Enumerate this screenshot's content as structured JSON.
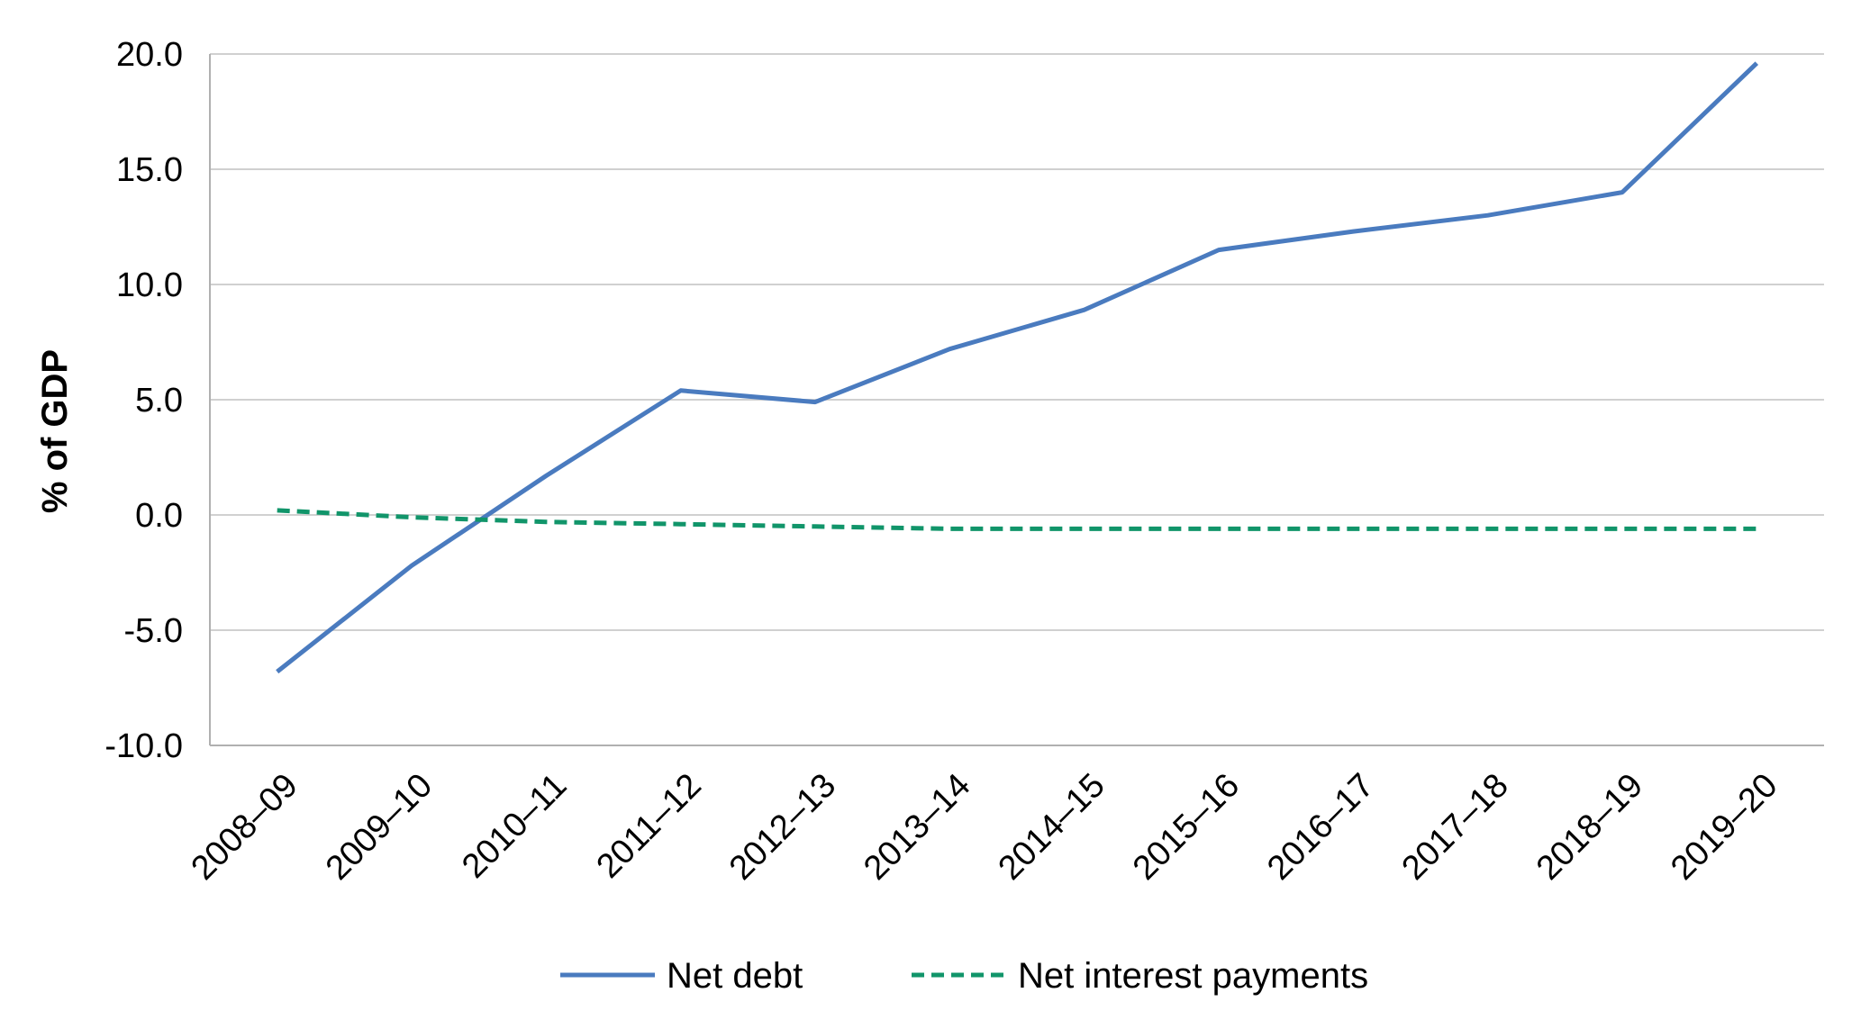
{
  "chart_data": {
    "type": "line",
    "title": "",
    "xlabel": "",
    "ylabel": "% of GDP",
    "ylim": [
      -10,
      20
    ],
    "yticks": [
      20,
      15,
      10,
      5,
      0,
      -5,
      -10
    ],
    "ytick_labels": [
      "20.0",
      "15.0",
      "10.0",
      "5.0",
      "0.0",
      "-5.0",
      "-10.0"
    ],
    "grid": true,
    "legend_position": "bottom",
    "categories": [
      "2008–09",
      "2009–10",
      "2010–11",
      "2011–12",
      "2012–13",
      "2013–14",
      "2014–15",
      "2015–16",
      "2016–17",
      "2017–18",
      "2018–19",
      "2019–20"
    ],
    "series": [
      {
        "name": "Net debt",
        "style": "solid",
        "color": "#4a7bbf",
        "values": [
          -6.8,
          -2.2,
          1.7,
          5.4,
          4.9,
          7.2,
          8.9,
          11.5,
          12.3,
          13.0,
          14.0,
          19.6
        ]
      },
      {
        "name": "Net interest payments",
        "style": "dashed",
        "color": "#11956a",
        "values": [
          0.2,
          -0.1,
          -0.3,
          -0.4,
          -0.5,
          -0.6,
          -0.6,
          -0.6,
          -0.6,
          -0.6,
          -0.6,
          -0.6
        ]
      }
    ]
  },
  "colors": {
    "gridline": "#d0d0d0",
    "axis": "#b0b0b0",
    "text": "#000000"
  }
}
